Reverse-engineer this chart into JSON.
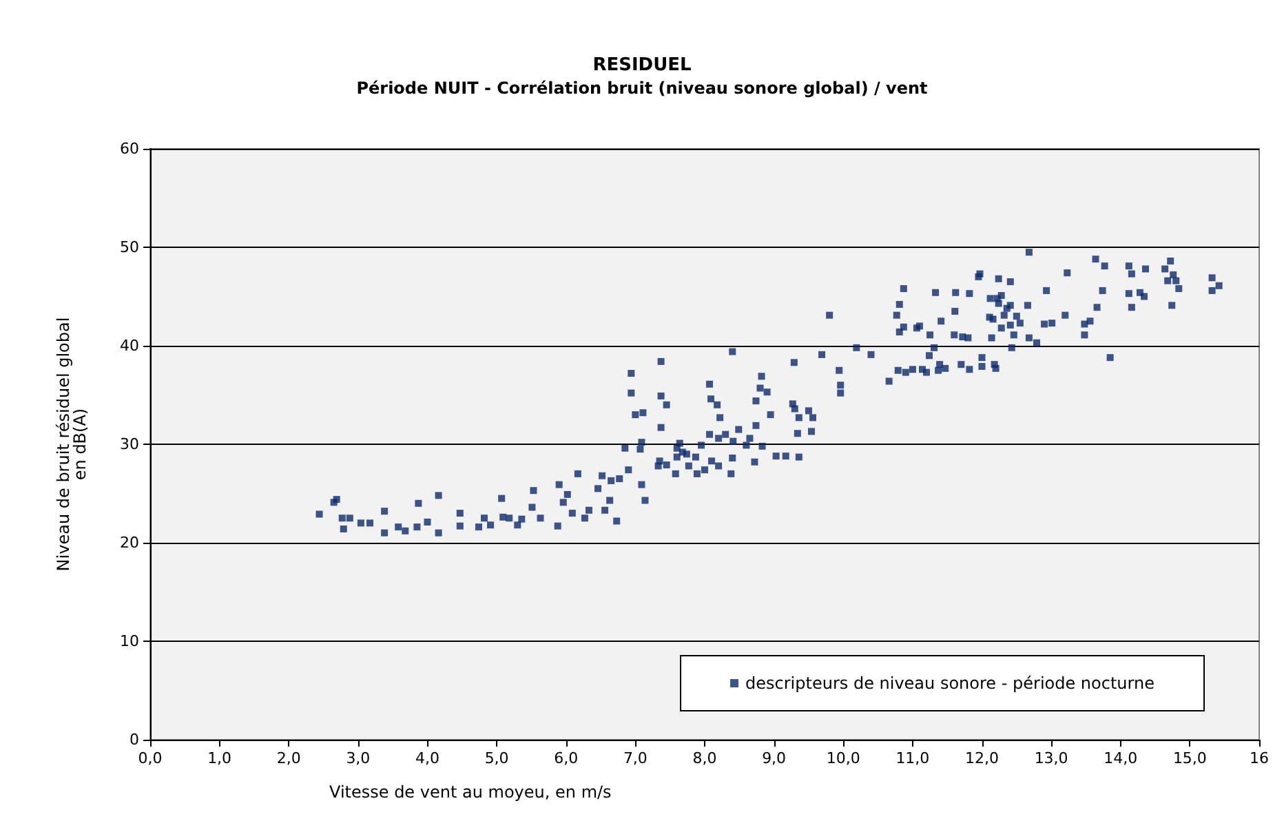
{
  "chart_data": {
    "type": "scatter",
    "title": "RESIDUEL",
    "subtitle": "Période NUIT - Corrélation bruit (niveau sonore global) / vent",
    "xlabel": "Vitesse de vent au moyeu, en m/s",
    "ylabel": "Niveau de bruit résiduel global\nen dB(A)",
    "xlim": [
      0,
      16
    ],
    "xticks": [
      {
        "value": 0,
        "label": "0,0"
      },
      {
        "value": 1,
        "label": "1,0"
      },
      {
        "value": 2,
        "label": "2,0"
      },
      {
        "value": 3,
        "label": "3,0"
      },
      {
        "value": 4,
        "label": "4,0"
      },
      {
        "value": 5,
        "label": "5,0"
      },
      {
        "value": 6,
        "label": "6,0"
      },
      {
        "value": 7,
        "label": "7,0"
      },
      {
        "value": 8,
        "label": "8,0"
      },
      {
        "value": 9,
        "label": "9,0"
      },
      {
        "value": 10,
        "label": "10,0"
      },
      {
        "value": 11,
        "label": "11,0"
      },
      {
        "value": 12,
        "label": "12,0"
      },
      {
        "value": 13,
        "label": "13,0"
      },
      {
        "value": 14,
        "label": "14,0"
      },
      {
        "value": 15,
        "label": "15,0"
      },
      {
        "value": 16,
        "label": "16"
      }
    ],
    "ylim": [
      0,
      60
    ],
    "yticks": [
      0,
      10,
      20,
      30,
      40,
      50,
      60
    ],
    "grid": "y",
    "legend": "bottom right",
    "marker": "square",
    "series": [
      {
        "name": "descripteurs de niveau sonore - période nocturne",
        "color": "#0d2a6b",
        "x": [
          2.44,
          2.65,
          2.69,
          2.77,
          2.79,
          2.88,
          3.04,
          3.17,
          3.38,
          3.38,
          3.58,
          3.68,
          3.85,
          3.87,
          4.0,
          4.16,
          4.16,
          4.47,
          4.47,
          4.74,
          4.82,
          4.91,
          5.07,
          5.09,
          5.18,
          5.3,
          5.36,
          5.53,
          5.51,
          5.63,
          5.9,
          5.88,
          5.96,
          6.02,
          6.09,
          6.17,
          6.27,
          6.33,
          6.46,
          6.52,
          6.56,
          6.63,
          6.77,
          6.85,
          6.73,
          6.94,
          6.94,
          7.37,
          7.37,
          7.45,
          7.11,
          7.37,
          7.09,
          7.07,
          7.6,
          7.6,
          7.35,
          7.45,
          7.58,
          7.33,
          7.09,
          7.14,
          6.9,
          6.65,
          7.0,
          8.07,
          8.09,
          8.18,
          8.07,
          8.22,
          8.3,
          8.41,
          8.49,
          8.65,
          8.74,
          8.74,
          8.82,
          8.8,
          8.9,
          8.95,
          8.83,
          9.03,
          8.72,
          8.6,
          8.2,
          8.4,
          7.74,
          7.87,
          8.1,
          8.2,
          8.38,
          8.0,
          7.89,
          7.77,
          7.95,
          7.64,
          7.68,
          9.36,
          9.3,
          9.34,
          9.36,
          9.17,
          9.54,
          9.56,
          9.27,
          9.5,
          9.29,
          8.4,
          9.69,
          9.94,
          9.96,
          9.96,
          10.66,
          10.79,
          11.24,
          10.4,
          10.19,
          9.8,
          10.77,
          10.81,
          10.87,
          11.06,
          11.33,
          11.61,
          11.62,
          11.82,
          11.95,
          11.97,
          12.24,
          12.28,
          12.12,
          12.22,
          12.41,
          12.68,
          12.11,
          12.16,
          12.28,
          12.41,
          12.5,
          12.32,
          12.41,
          12.93,
          13.23,
          13.74,
          13.66,
          14.12,
          14.16,
          14.36,
          14.64,
          14.72,
          14.68,
          14.76,
          14.8,
          14.84,
          14.74,
          15.32,
          15.32,
          15.42,
          14.12,
          14.16,
          14.28,
          14.34,
          13.77,
          13.64,
          13.2,
          12.66,
          13.56,
          13.48,
          12.36,
          13.85,
          13.48,
          13.01,
          12.9,
          12.55,
          12.24,
          11.6,
          11.72,
          11.8,
          12.14,
          12.46,
          12.68,
          12.43,
          12.79,
          11.31,
          11.39,
          11.47,
          11.37,
          11.2,
          11.14,
          11.0,
          10.9,
          11.7,
          11.82,
          12.0,
          12.18,
          12.2,
          12.0,
          10.81,
          10.87,
          11.1,
          11.25,
          11.41
        ],
        "values": [
          22.9,
          24.1,
          24.4,
          22.5,
          21.4,
          22.5,
          22.0,
          22.0,
          23.2,
          21.0,
          21.6,
          21.2,
          21.6,
          24.0,
          22.1,
          24.8,
          21.0,
          23.0,
          21.7,
          21.6,
          22.5,
          21.8,
          24.5,
          22.6,
          22.5,
          21.8,
          22.4,
          25.3,
          23.6,
          22.5,
          25.9,
          21.7,
          24.1,
          24.9,
          23.0,
          27.0,
          22.5,
          23.3,
          25.5,
          26.8,
          23.3,
          24.3,
          26.5,
          29.6,
          22.2,
          37.2,
          35.2,
          38.4,
          34.9,
          34.0,
          33.2,
          31.7,
          30.2,
          29.5,
          29.6,
          28.7,
          28.3,
          27.9,
          27.0,
          27.8,
          25.9,
          24.3,
          27.4,
          26.3,
          33.0,
          36.1,
          34.6,
          34.0,
          31.0,
          32.7,
          31.0,
          30.3,
          31.5,
          30.6,
          31.9,
          34.4,
          36.9,
          35.7,
          35.3,
          33.0,
          29.8,
          28.8,
          28.2,
          29.9,
          30.6,
          28.6,
          29.0,
          28.7,
          28.3,
          27.8,
          27.0,
          27.4,
          27.0,
          27.8,
          29.9,
          30.1,
          29.2,
          32.7,
          33.6,
          31.1,
          28.7,
          28.8,
          31.3,
          32.7,
          34.1,
          33.4,
          38.3,
          39.4,
          39.1,
          37.5,
          36.0,
          35.2,
          36.4,
          37.5,
          39.0,
          39.1,
          39.8,
          43.1,
          43.1,
          44.2,
          45.8,
          41.8,
          45.4,
          43.5,
          45.4,
          45.3,
          47.0,
          47.3,
          46.8,
          45.1,
          44.8,
          44.8,
          44.1,
          49.5,
          42.9,
          42.7,
          41.8,
          42.1,
          43.0,
          43.1,
          46.5,
          45.6,
          47.4,
          45.6,
          43.9,
          48.1,
          47.3,
          47.8,
          47.8,
          48.6,
          46.6,
          47.2,
          46.6,
          45.8,
          44.1,
          46.9,
          45.6,
          46.1,
          45.3,
          43.9,
          45.4,
          45.0,
          48.1,
          48.8,
          43.1,
          44.1,
          42.5,
          42.2,
          43.8,
          38.8,
          41.1,
          42.3,
          42.2,
          42.3,
          44.3,
          41.1,
          40.9,
          40.8,
          40.8,
          41.1,
          40.8,
          39.8,
          40.3,
          39.8,
          38.1,
          37.7,
          37.5,
          37.3,
          37.6,
          37.6,
          37.3,
          38.1,
          37.6,
          37.9,
          38.1,
          37.7,
          38.8,
          41.4,
          41.9,
          42.0,
          41.1,
          42.5
        ]
      }
    ]
  }
}
